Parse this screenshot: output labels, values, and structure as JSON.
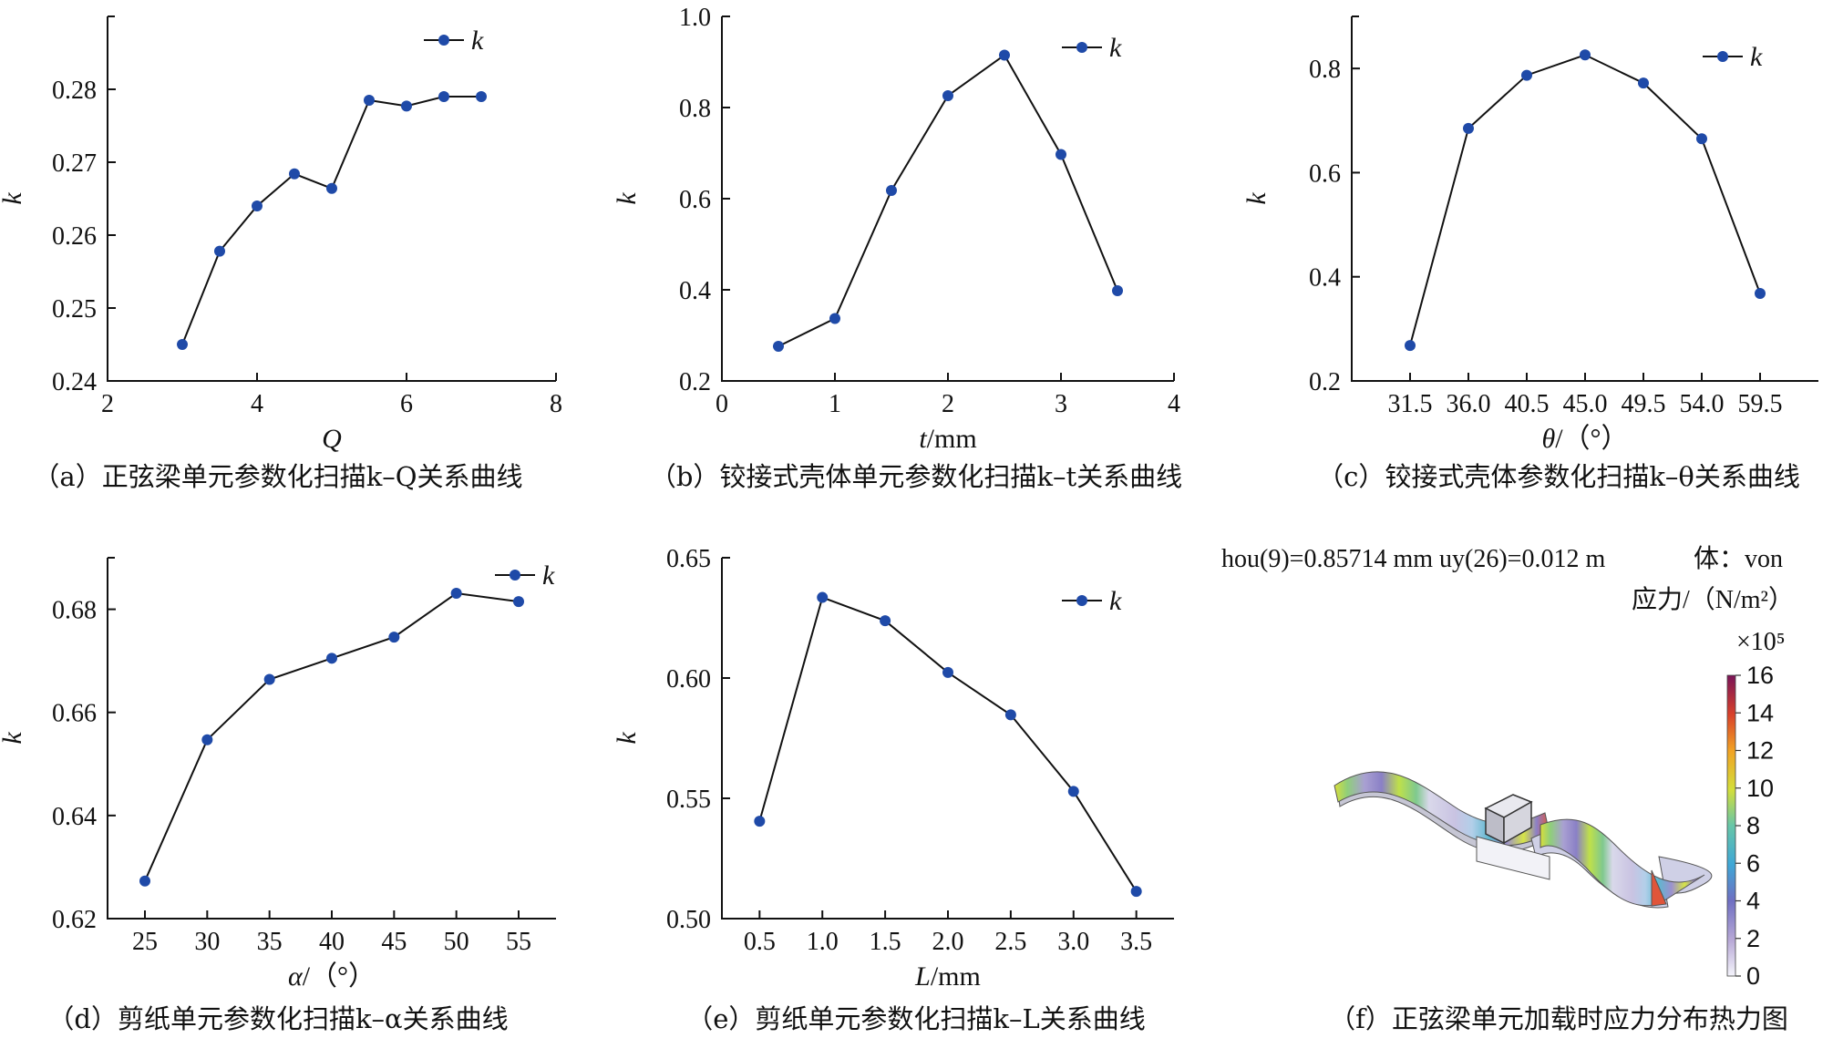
{
  "chart_data": [
    {
      "id": "a",
      "type": "line",
      "caption": "（a）正弦梁单元参数化扫描k–Q关系曲线",
      "xlabel": "Q",
      "xlabel_italic": true,
      "xlabel_suffix": "",
      "ylabel": "k",
      "legend": "k",
      "xlim": [
        2,
        8
      ],
      "ylim": [
        0.24,
        0.29
      ],
      "xticks": [
        2,
        4,
        6,
        8
      ],
      "xtick_labels": [
        "2",
        "4",
        "6",
        "8"
      ],
      "yticks": [
        0.24,
        0.25,
        0.26,
        0.27,
        0.28
      ],
      "ytick_labels": [
        "0.24",
        "0.25",
        "0.26",
        "0.27",
        "0.28"
      ],
      "series": [
        {
          "x": [
            3.0,
            3.5,
            4.0,
            4.5,
            5.0,
            5.5,
            6.0,
            6.5,
            7.0
          ],
          "y": [
            0.245,
            0.2578,
            0.264,
            0.2684,
            0.2664,
            0.2785,
            0.2777,
            0.279,
            0.279
          ]
        }
      ]
    },
    {
      "id": "b",
      "type": "line",
      "caption": "（b）铰接式壳体单元参数化扫描k–t关系曲线",
      "xlabel": "t",
      "xlabel_italic": true,
      "xlabel_suffix": "/mm",
      "ylabel": "k",
      "legend": "k",
      "xlim": [
        0,
        4
      ],
      "ylim": [
        0.2,
        1.0
      ],
      "xticks": [
        0,
        1,
        2,
        3,
        4
      ],
      "xtick_labels": [
        "0",
        "1",
        "2",
        "3",
        "4"
      ],
      "yticks": [
        0.2,
        0.4,
        0.6,
        0.8,
        1.0
      ],
      "ytick_labels": [
        "0.2",
        "0.4",
        "0.6",
        "0.8",
        "1.0"
      ],
      "series": [
        {
          "x": [
            0.5,
            1.0,
            1.5,
            2.0,
            2.5,
            3.0,
            3.5
          ],
          "y": [
            0.276,
            0.337,
            0.618,
            0.826,
            0.915,
            0.697,
            0.398
          ]
        }
      ]
    },
    {
      "id": "c",
      "type": "line",
      "caption": "（c）铰接式壳体参数化扫描k–θ关系曲线",
      "xlabel": "θ",
      "xlabel_italic": true,
      "xlabel_suffix": "/（°）",
      "ylabel": "k",
      "legend": "k",
      "xlim": [
        0,
        8
      ],
      "ylim": [
        0.2,
        0.9
      ],
      "xticks": [
        1,
        2,
        3,
        4,
        5,
        6,
        7
      ],
      "xtick_labels": [
        "31.5",
        "36.0",
        "40.5",
        "45.0",
        "49.5",
        "54.0",
        "59.5"
      ],
      "yticks": [
        0.2,
        0.4,
        0.6,
        0.8
      ],
      "ytick_labels": [
        "0.2",
        "0.4",
        "0.6",
        "0.8"
      ],
      "series": [
        {
          "x": [
            1,
            2,
            3,
            4,
            5,
            6,
            7
          ],
          "y": [
            0.268,
            0.685,
            0.787,
            0.826,
            0.772,
            0.665,
            0.368
          ]
        }
      ]
    },
    {
      "id": "d",
      "type": "line",
      "caption": "（d）剪纸单元参数化扫描k–α关系曲线",
      "xlabel": "α",
      "xlabel_italic": true,
      "xlabel_suffix": "/（°）",
      "ylabel": "k",
      "legend": "k",
      "xlim": [
        22,
        58
      ],
      "ylim": [
        0.62,
        0.69
      ],
      "xticks": [
        25,
        30,
        35,
        40,
        45,
        50,
        55
      ],
      "xtick_labels": [
        "25",
        "30",
        "35",
        "40",
        "45",
        "50",
        "55"
      ],
      "yticks": [
        0.62,
        0.64,
        0.66,
        0.68
      ],
      "ytick_labels": [
        "0.62",
        "0.64",
        "0.66",
        "0.68"
      ],
      "series": [
        {
          "x": [
            25,
            30,
            35,
            40,
            45,
            50,
            55
          ],
          "y": [
            0.6273,
            0.6547,
            0.6664,
            0.6705,
            0.6746,
            0.6831,
            0.6815
          ]
        }
      ]
    },
    {
      "id": "e",
      "type": "line",
      "caption": "（e）剪纸单元参数化扫描k–L关系曲线",
      "xlabel": "L",
      "xlabel_italic": true,
      "xlabel_suffix": "/mm",
      "ylabel": "k",
      "legend": "k",
      "xlim": [
        0.2,
        3.8
      ],
      "ylim": [
        0.5,
        0.65
      ],
      "xticks": [
        0.5,
        1.0,
        1.5,
        2.0,
        2.5,
        3.0,
        3.5
      ],
      "xtick_labels": [
        "0.5",
        "1.0",
        "1.5",
        "2.0",
        "2.5",
        "3.0",
        "3.5"
      ],
      "yticks": [
        0.5,
        0.55,
        0.6,
        0.65
      ],
      "ytick_labels": [
        "0.50",
        "0.55",
        "0.60",
        "0.65"
      ],
      "series": [
        {
          "x": [
            0.5,
            1.0,
            1.5,
            2.0,
            2.5,
            3.0,
            3.5
          ],
          "y": [
            0.5405,
            0.6335,
            0.6238,
            0.6023,
            0.5847,
            0.5529,
            0.5113
          ]
        }
      ]
    }
  ],
  "heatmap_panel": {
    "caption": "（f）正弦梁单元加载时应力分布热力图",
    "header_text": "hou(9)=0.85714 mm uy(26)=0.012 m",
    "header_right": "体：von",
    "units_label": "应力/（N/m²）",
    "scale_label": "×10⁵",
    "colorbar_ticks": [
      "0",
      "2",
      "4",
      "6",
      "8",
      "10",
      "12",
      "14",
      "16"
    ],
    "colorbar_range": [
      0,
      16
    ]
  },
  "colors": {
    "marker": "#1f4aa8",
    "line": "#111111"
  }
}
